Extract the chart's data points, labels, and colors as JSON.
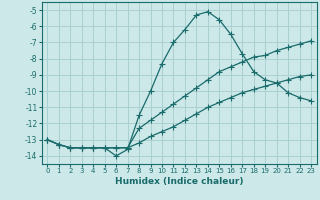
{
  "xlabel": "Humidex (Indice chaleur)",
  "bg_color": "#cce8e8",
  "grid_color": "#aad0d0",
  "line_color": "#1a6b6b",
  "xlim": [
    -0.5,
    23.5
  ],
  "ylim": [
    -14.5,
    -4.5
  ],
  "yticks": [
    -14,
    -13,
    -12,
    -11,
    -10,
    -9,
    -8,
    -7,
    -6,
    -5
  ],
  "xticks": [
    0,
    1,
    2,
    3,
    4,
    5,
    6,
    7,
    8,
    9,
    10,
    11,
    12,
    13,
    14,
    15,
    16,
    17,
    18,
    19,
    20,
    21,
    22,
    23
  ],
  "line1_x": [
    0,
    1,
    2,
    3,
    4,
    5,
    6,
    7,
    8,
    9,
    10,
    11,
    12,
    13,
    14,
    15,
    16,
    17,
    18,
    19,
    20,
    21,
    22,
    23
  ],
  "line1_y": [
    -13.0,
    -13.3,
    -13.5,
    -13.5,
    -13.5,
    -13.5,
    -14.0,
    -13.6,
    -11.5,
    -10.0,
    -8.3,
    -7.0,
    -6.2,
    -5.3,
    -5.1,
    -5.6,
    -6.5,
    -7.7,
    -8.8,
    -9.3,
    -9.5,
    -10.1,
    -10.4,
    -10.6
  ],
  "line2_x": [
    0,
    1,
    2,
    3,
    4,
    5,
    6,
    7,
    8,
    9,
    10,
    11,
    12,
    13,
    14,
    15,
    16,
    17,
    18,
    19,
    20,
    21,
    22,
    23
  ],
  "line2_y": [
    -13.0,
    -13.3,
    -13.5,
    -13.5,
    -13.5,
    -13.5,
    -13.5,
    -13.5,
    -12.3,
    -11.8,
    -11.3,
    -10.8,
    -10.3,
    -9.8,
    -9.3,
    -8.8,
    -8.5,
    -8.2,
    -7.9,
    -7.8,
    -7.5,
    -7.3,
    -7.1,
    -6.9
  ],
  "line3_x": [
    0,
    1,
    2,
    3,
    4,
    5,
    6,
    7,
    8,
    9,
    10,
    11,
    12,
    13,
    14,
    15,
    16,
    17,
    18,
    19,
    20,
    21,
    22,
    23
  ],
  "line3_y": [
    -13.0,
    -13.3,
    -13.5,
    -13.5,
    -13.5,
    -13.5,
    -13.5,
    -13.5,
    -13.2,
    -12.8,
    -12.5,
    -12.2,
    -11.8,
    -11.4,
    -11.0,
    -10.7,
    -10.4,
    -10.1,
    -9.9,
    -9.7,
    -9.5,
    -9.3,
    -9.1,
    -9.0
  ]
}
